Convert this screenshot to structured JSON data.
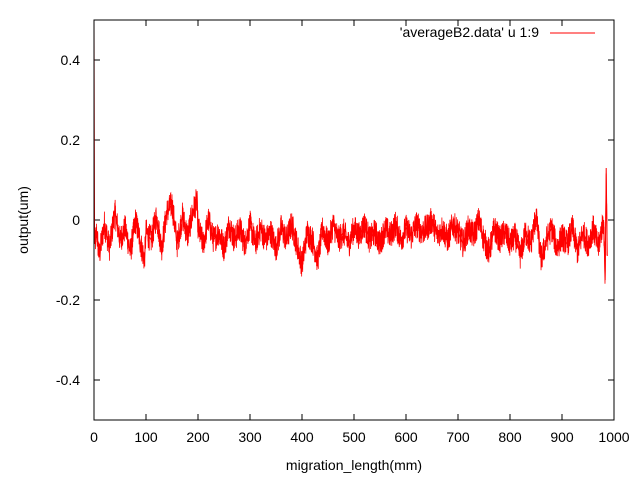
{
  "chart_data": {
    "type": "line",
    "title": "",
    "xlabel": "migration_length(mm)",
    "ylabel": "output(um)",
    "xlim": [
      0,
      1000
    ],
    "ylim": [
      -0.5,
      0.5
    ],
    "x_ticks": [
      0,
      100,
      200,
      300,
      400,
      500,
      600,
      700,
      800,
      900,
      1000
    ],
    "y_ticks": [
      -0.4,
      -0.2,
      0,
      0.2,
      0.4
    ],
    "x_tick_labels": [
      "0",
      "100",
      "200",
      "300",
      "400",
      "500",
      "600",
      "700",
      "800",
      "900",
      "1000"
    ],
    "y_tick_labels": [
      "-0.4",
      "-0.2",
      "0",
      "0.2",
      "0.4"
    ],
    "grid": false,
    "legend_position": "top-right",
    "series": [
      {
        "name": "'averageB2.data' u 1:9",
        "color": "#ff0000",
        "x": [
          0,
          1,
          2,
          5,
          10,
          20,
          30,
          40,
          50,
          60,
          70,
          80,
          90,
          97,
          100,
          110,
          120,
          130,
          140,
          150,
          160,
          170,
          180,
          190,
          198,
          200,
          210,
          220,
          230,
          240,
          250,
          260,
          270,
          280,
          290,
          300,
          310,
          320,
          330,
          340,
          350,
          360,
          370,
          380,
          390,
          400,
          410,
          420,
          430,
          440,
          450,
          460,
          470,
          480,
          490,
          500,
          510,
          520,
          530,
          540,
          550,
          560,
          570,
          580,
          590,
          600,
          610,
          620,
          630,
          640,
          650,
          660,
          670,
          680,
          690,
          700,
          710,
          720,
          730,
          740,
          750,
          760,
          770,
          780,
          790,
          800,
          810,
          820,
          830,
          840,
          850,
          860,
          870,
          880,
          890,
          900,
          910,
          920,
          930,
          940,
          950,
          960,
          970,
          975,
          980,
          983,
          985,
          987
        ],
        "y": [
          0.5,
          -0.02,
          -0.06,
          -0.03,
          -0.09,
          -0.01,
          -0.07,
          0.02,
          -0.05,
          -0.02,
          -0.08,
          0.0,
          -0.06,
          -0.1,
          -0.03,
          -0.05,
          0.01,
          -0.07,
          0.02,
          0.04,
          -0.06,
          0.01,
          -0.04,
          0.02,
          0.05,
          -0.02,
          -0.06,
          0.0,
          -0.05,
          -0.03,
          -0.07,
          -0.01,
          -0.05,
          -0.02,
          -0.06,
          -0.01,
          -0.06,
          -0.02,
          -0.05,
          -0.03,
          -0.07,
          -0.02,
          -0.05,
          -0.01,
          -0.06,
          -0.11,
          -0.03,
          -0.05,
          -0.1,
          -0.02,
          -0.06,
          -0.01,
          -0.05,
          -0.03,
          -0.06,
          -0.02,
          -0.04,
          -0.01,
          -0.05,
          -0.03,
          -0.06,
          -0.02,
          -0.04,
          -0.01,
          -0.05,
          -0.02,
          -0.04,
          -0.01,
          -0.03,
          -0.02,
          0.0,
          -0.04,
          -0.02,
          -0.05,
          -0.01,
          -0.03,
          -0.06,
          -0.02,
          -0.04,
          0.0,
          -0.05,
          -0.08,
          -0.02,
          -0.05,
          -0.03,
          -0.06,
          -0.04,
          -0.09,
          -0.03,
          -0.06,
          0.01,
          -0.1,
          -0.05,
          -0.02,
          -0.07,
          -0.04,
          -0.06,
          -0.02,
          -0.08,
          -0.03,
          -0.06,
          -0.02,
          -0.07,
          -0.03,
          0.0,
          -0.15,
          0.13,
          -0.09
        ]
      }
    ]
  }
}
